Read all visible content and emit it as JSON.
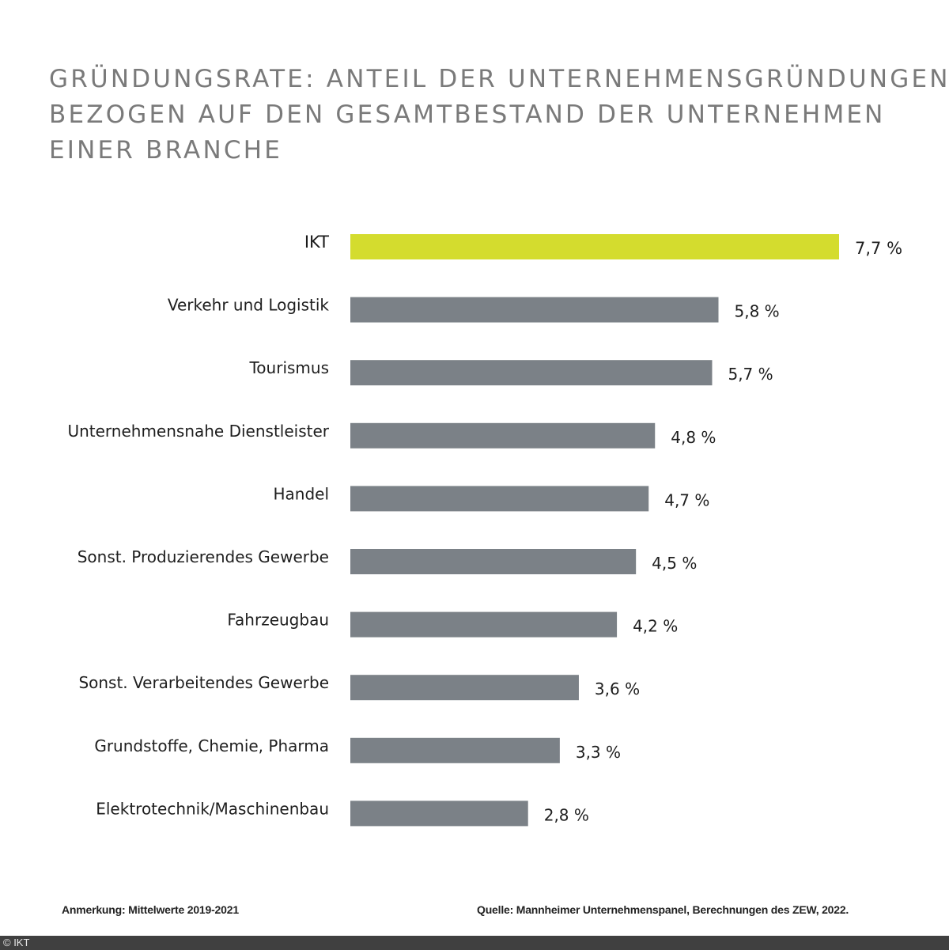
{
  "title_lines": [
    "GRÜNDUNGSRATE: ANTEIL DER UNTERNEHMENSGRÜNDUNGEN",
    "BEZOGEN AUF DEN GESAMTBESTAND DER UNTERNEHMEN",
    "EINER BRANCHE"
  ],
  "colors": {
    "highlight": "#d4dc2e",
    "bar": "#7b8187",
    "title": "#7a7a7a",
    "footer_bg": "#404040"
  },
  "chart_data": {
    "type": "bar",
    "orientation": "horizontal",
    "title": "GRÜNDUNGSRATE: ANTEIL DER UNTERNEHMENSGRÜNDUNGEN BEZOGEN AUF DEN GESAMTBESTAND DER UNTERNEHMEN EINER BRANCHE",
    "xlabel": "",
    "ylabel": "",
    "unit": "%",
    "xlim": [
      0,
      7.7
    ],
    "grid": false,
    "legend": "none",
    "categories": [
      "IKT",
      "Verkehr und Logistik",
      "Tourismus",
      "Unternehmensnahe Dienstleister",
      "Handel",
      "Sonst. Produzierendes Gewerbe",
      "Fahrzeugbau",
      "Sonst. Verarbeitendes Gewerbe",
      "Grundstoffe, Chemie, Pharma",
      "Elektrotechnik/Maschinenbau"
    ],
    "values": [
      7.7,
      5.8,
      5.7,
      4.8,
      4.7,
      4.5,
      4.2,
      3.6,
      3.3,
      2.8
    ],
    "value_labels": [
      "7,7 %",
      "5,8 %",
      "5,7 %",
      "4,8 %",
      "4,7 %",
      "4,5 %",
      "4,2 %",
      "3,6 %",
      "3,3 %",
      "2,8 %"
    ],
    "highlighted": [
      "IKT"
    ]
  },
  "notes": {
    "left": "Anmerkung: Mittelwerte 2019-2021",
    "right": "Quelle: Mannheimer Unternehmenspanel, Berechnungen des ZEW, 2022."
  },
  "footer": {
    "copyright": "© IKT"
  }
}
